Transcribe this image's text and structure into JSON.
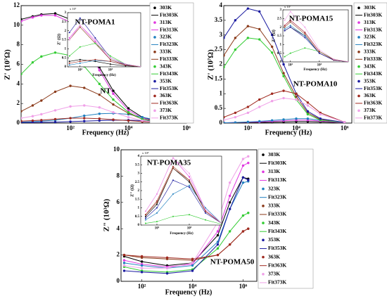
{
  "chart_data": [
    {
      "type": "line",
      "xlabel": "Frequency (Hz)",
      "ylabel": "Z' (10⁷Ω)",
      "xscale": "log",
      "xlim": [
        2,
        1000000
      ],
      "xticks": [
        {
          "value": 100,
          "label": "10²"
        },
        {
          "value": 10000,
          "label": "10⁴"
        },
        {
          "value": 1000000,
          "label": "10⁶"
        }
      ],
      "ylim": [
        0,
        12
      ],
      "yticks": [
        0,
        2,
        4,
        6,
        8,
        10,
        12
      ],
      "annotations": [
        "NT-POMA1",
        "NT"
      ],
      "x": [
        2,
        5,
        10,
        30,
        100,
        300,
        1000,
        3000,
        10000,
        30000,
        100000,
        1000000
      ],
      "series": [
        {
          "name": "303K",
          "fit_name": "Fit303K",
          "color": "#000000",
          "values": [
            10.6,
            10.9,
            11.1,
            11.2,
            10.6,
            8.6,
            5.7,
            3.3,
            1.5,
            0.6,
            0.2,
            0.05
          ]
        },
        {
          "name": "313K",
          "fit_name": "Fit313K",
          "color": "#e038e0",
          "values": [
            10.4,
            10.8,
            11.0,
            11.0,
            10.3,
            8.3,
            5.4,
            3.0,
            1.3,
            0.5,
            0.15,
            0.05
          ]
        },
        {
          "name": "323K",
          "fit_name": "Fit323K",
          "color": "#1f7fbf",
          "values": [
            0.1,
            0.15,
            0.2,
            0.3,
            0.5,
            0.75,
            0.95,
            1.0,
            0.9,
            0.6,
            0.3,
            0.05
          ]
        },
        {
          "name": "333K",
          "fit_name": "Fit333K",
          "color": "#8b3a1a",
          "values": [
            1.2,
            1.8,
            2.3,
            3.2,
            3.8,
            3.6,
            2.9,
            1.9,
            1.0,
            0.4,
            0.15,
            0.02
          ]
        },
        {
          "name": "343K",
          "fit_name": "Fit343K",
          "color": "#33cc33",
          "values": [
            5.0,
            6.2,
            6.8,
            7.2,
            6.9,
            5.8,
            4.0,
            2.4,
            1.1,
            0.4,
            0.12,
            0.02
          ]
        },
        {
          "name": "353K",
          "fit_name": "Fit353K",
          "color": "#1a1aa0",
          "values": [
            0.05,
            0.06,
            0.08,
            0.1,
            0.15,
            0.2,
            0.25,
            0.3,
            0.3,
            0.25,
            0.15,
            0.02
          ]
        },
        {
          "name": "363K",
          "fit_name": "Fit363K",
          "color": "#a02a20",
          "values": [
            0.2,
            0.25,
            0.3,
            0.4,
            0.5,
            0.5,
            0.45,
            0.35,
            0.25,
            0.15,
            0.08,
            0.01
          ]
        },
        {
          "name": "373K",
          "fit_name": "Fit373K",
          "color": "#f0a0e8",
          "values": [
            0.5,
            0.7,
            0.9,
            1.3,
            1.7,
            1.8,
            1.6,
            1.1,
            0.6,
            0.25,
            0.08,
            0.01
          ]
        }
      ]
    },
    {
      "type": "line",
      "xlabel": "Frequency (Hz)",
      "ylabel": "Z' (10⁷Ω)",
      "xscale": "log",
      "xlim": [
        10,
        2000000
      ],
      "xticks": [
        {
          "value": 100,
          "label": "10²"
        },
        {
          "value": 10000,
          "label": "10⁴"
        },
        {
          "value": 1000000,
          "label": "10⁶"
        }
      ],
      "ylim": [
        0,
        4
      ],
      "yticks": [
        0,
        0.5,
        1,
        1.5,
        2,
        2.5,
        3,
        3.5,
        4
      ],
      "annotations": [
        "NT-POMA15",
        "NT-POMA10"
      ],
      "x": [
        10,
        30,
        100,
        300,
        1000,
        3000,
        10000,
        30000,
        100000,
        1000000
      ],
      "series": [
        {
          "name": "303K",
          "fit_name": "Fit303K",
          "color": "#000000",
          "values": [
            0.01,
            0.01,
            0.02,
            0.02,
            0.03,
            0.04,
            0.05,
            0.05,
            0.04,
            0.01
          ]
        },
        {
          "name": "313K",
          "fit_name": "Fit313K",
          "color": "#e038e0",
          "values": [
            0.01,
            0.02,
            0.03,
            0.04,
            0.06,
            0.08,
            0.1,
            0.1,
            0.07,
            0.01
          ]
        },
        {
          "name": "323K",
          "fit_name": "Fit323K",
          "color": "#1f7fbf",
          "values": [
            0.01,
            0.02,
            0.04,
            0.06,
            0.09,
            0.12,
            0.15,
            0.15,
            0.1,
            0.02
          ]
        },
        {
          "name": "333K",
          "fit_name": "Fit333K",
          "color": "#8b3a1a",
          "values": [
            2.3,
            2.9,
            3.3,
            3.2,
            2.6,
            1.7,
            0.9,
            0.35,
            0.12,
            0.02
          ]
        },
        {
          "name": "343K",
          "fit_name": "Fit343K",
          "color": "#33cc33",
          "values": [
            1.9,
            2.5,
            2.9,
            2.85,
            2.4,
            1.6,
            0.8,
            0.3,
            0.1,
            0.02
          ]
        },
        {
          "name": "353K",
          "fit_name": "Fit353K",
          "color": "#1a1aa0",
          "values": [
            2.9,
            3.5,
            3.9,
            3.8,
            3.0,
            2.0,
            1.0,
            0.4,
            0.15,
            0.02
          ]
        },
        {
          "name": "363K",
          "fit_name": "Fit363K",
          "color": "#a02a20",
          "values": [
            0.2,
            0.35,
            0.55,
            0.8,
            1.0,
            1.1,
            1.0,
            0.7,
            0.35,
            0.03
          ]
        },
        {
          "name": "373K",
          "fit_name": "Fit373K",
          "color": "#f0a0e8",
          "values": [
            0.1,
            0.2,
            0.35,
            0.55,
            0.75,
            0.85,
            0.8,
            0.6,
            0.3,
            0.03
          ]
        }
      ]
    },
    {
      "type": "line",
      "xlabel": "Frequency (Hz)",
      "ylabel": "Z\" (10³Ω)",
      "xscale": "log",
      "xlim": [
        15,
        3500000
      ],
      "xticks": [
        {
          "value": 100,
          "label": "10²"
        },
        {
          "value": 10000,
          "label": "10⁴"
        },
        {
          "value": 1000000,
          "label": "10⁶"
        }
      ],
      "ylim": [
        0,
        10
      ],
      "yticks": [
        0,
        2,
        4,
        6,
        8,
        10
      ],
      "annotations": [
        "NT-POMA35",
        "NT-POMA50"
      ],
      "x": [
        20,
        100,
        1000,
        10000,
        100000,
        300000,
        1000000,
        1600000
      ],
      "series": [
        {
          "name": "303K",
          "fit_name": "Fit303K",
          "color": "#000000",
          "values": [
            1.9,
            1.5,
            1.2,
            1.4,
            3.5,
            6.0,
            7.9,
            7.8
          ]
        },
        {
          "name": "313K",
          "fit_name": "Fit313K",
          "color": "#e038e0",
          "values": [
            1.6,
            1.3,
            1.1,
            1.3,
            3.8,
            6.5,
            8.8,
            9.0
          ]
        },
        {
          "name": "323K",
          "fit_name": "Fit323K",
          "color": "#1f7fbf",
          "values": [
            1.4,
            1.2,
            1.0,
            1.2,
            3.0,
            5.5,
            7.5,
            7.6
          ]
        },
        {
          "name": "333K",
          "fit_name": "Fit333K",
          "color": "#8b3a1a",
          "values": [
            2.0,
            1.8,
            1.7,
            1.6,
            2.0,
            2.8,
            3.8,
            4.0
          ]
        },
        {
          "name": "343K",
          "fit_name": "Fit343K",
          "color": "#33cc33",
          "values": [
            1.1,
            0.8,
            0.7,
            0.9,
            2.5,
            3.8,
            5.0,
            5.2
          ]
        },
        {
          "name": "353K",
          "fit_name": "Fit353K",
          "color": "#1a1aa0",
          "values": [
            0.8,
            0.7,
            0.6,
            0.8,
            2.8,
            5.5,
            7.9,
            7.7
          ]
        },
        {
          "name": "363K",
          "fit_name": "Fit363K",
          "color": "#a02a20",
          "values": [
            2.0,
            1.9,
            1.8,
            1.7,
            2.0,
            2.8,
            3.8,
            4.0
          ]
        },
        {
          "name": "373K",
          "fit_name": "Fit373K",
          "color": "#f0a0e8",
          "values": [
            1.2,
            1.0,
            1.0,
            1.4,
            4.5,
            7.5,
            9.3,
            9.5
          ]
        }
      ]
    },
    {
      "type": "line",
      "inset": true,
      "xlabel": "Frequency (Hz)",
      "ylabel": "Z' (Ω)",
      "y_multiplier": "x 10⁷",
      "xscale": "log",
      "xlim": [
        15,
        1000000
      ],
      "xticks": [
        {
          "value": 100,
          "label": "10²"
        },
        {
          "value": 10000,
          "label": "10⁴"
        }
      ],
      "ylim": [
        0,
        3
      ],
      "yticks": [
        0,
        0.5,
        1,
        1.5,
        2,
        2.5,
        3
      ],
      "x": [
        20,
        100,
        1000,
        10000,
        100000,
        1000000
      ],
      "series": [
        {
          "color": "#000000",
          "values": [
            0.3,
            0.4,
            0.3,
            0.15,
            0.05,
            0.01
          ]
        },
        {
          "color": "#e038e0",
          "values": [
            1.6,
            2.3,
            1.4,
            0.4,
            0.1,
            0.01
          ]
        },
        {
          "color": "#1f7fbf",
          "values": [
            0.1,
            0.2,
            0.35,
            0.3,
            0.1,
            0.01
          ]
        },
        {
          "color": "#8b3a1a",
          "values": [
            1.5,
            2.2,
            1.3,
            0.4,
            0.1,
            0.01
          ]
        },
        {
          "color": "#33cc33",
          "values": [
            0.6,
            1.1,
            1.3,
            0.6,
            0.15,
            0.01
          ]
        },
        {
          "color": "#1a1aa0",
          "values": [
            1.9,
            2.7,
            1.6,
            0.5,
            0.12,
            0.01
          ]
        },
        {
          "color": "#a02a20",
          "values": [
            0.2,
            0.3,
            0.4,
            0.3,
            0.1,
            0.01
          ]
        },
        {
          "color": "#f0a0e8",
          "values": [
            1.5,
            2.3,
            1.5,
            0.5,
            0.15,
            0.01
          ]
        }
      ]
    },
    {
      "type": "line",
      "inset": true,
      "xlabel": "Frequency (Hz)",
      "ylabel": "Z\" (Ω)",
      "y_multiplier": "x 10⁷",
      "xscale": "log",
      "xlim": [
        30,
        1000000
      ],
      "xticks": [
        {
          "value": 100,
          "label": "10²"
        },
        {
          "value": 10000,
          "label": "10⁴"
        }
      ],
      "ylim": [
        0,
        3
      ],
      "yticks": [
        0,
        0.5,
        1,
        1.5,
        2,
        2.5,
        3
      ],
      "x": [
        40,
        100,
        1000,
        10000,
        100000,
        1000000
      ],
      "series": [
        {
          "color": "#000000",
          "values": [
            1.8,
            2.0,
            1.5,
            0.5,
            0.1,
            0.01
          ]
        },
        {
          "color": "#e038e0",
          "values": [
            2.1,
            2.4,
            1.7,
            0.6,
            0.12,
            0.01
          ]
        },
        {
          "color": "#1f7fbf",
          "values": [
            1.9,
            2.1,
            1.5,
            0.5,
            0.1,
            0.01
          ]
        },
        {
          "color": "#8b3a1a",
          "values": [
            2.0,
            2.3,
            1.6,
            0.5,
            0.1,
            0.01
          ]
        },
        {
          "color": "#33cc33",
          "values": [
            0.3,
            0.5,
            0.8,
            0.6,
            0.15,
            0.01
          ]
        },
        {
          "color": "#1a1aa0",
          "values": [
            1.8,
            2.0,
            1.4,
            0.5,
            0.1,
            0.01
          ]
        },
        {
          "color": "#a02a20",
          "values": [
            2.1,
            2.4,
            1.7,
            0.6,
            0.12,
            0.01
          ]
        },
        {
          "color": "#f0a0e8",
          "values": [
            2.4,
            2.9,
            2.0,
            0.7,
            0.15,
            0.01
          ]
        }
      ]
    },
    {
      "type": "line",
      "inset": true,
      "xlabel": "Frequency (Hz)",
      "ylabel": "Z\" (Ω)",
      "y_multiplier": "x 10⁵",
      "xscale": "log",
      "xlim": [
        100,
        10000000
      ],
      "xticks": [
        {
          "value": 1000,
          "label": "10³"
        },
        {
          "value": 100000,
          "label": "10⁵"
        }
      ],
      "ylim": [
        0,
        4
      ],
      "yticks": [
        0,
        0.5,
        1,
        1.5,
        2,
        2.5,
        3,
        3.5,
        4
      ],
      "x": [
        200,
        1000,
        10000,
        100000,
        1000000,
        10000000
      ],
      "series": [
        {
          "color": "#000000",
          "values": [
            0.5,
            1.2,
            3.3,
            2.5,
            0.8,
            0.1
          ]
        },
        {
          "color": "#e038e0",
          "values": [
            0.8,
            1.8,
            3.9,
            2.8,
            0.9,
            0.1
          ]
        },
        {
          "color": "#1f7fbf",
          "values": [
            0.3,
            0.7,
            1.8,
            2.3,
            1.0,
            0.1
          ]
        },
        {
          "color": "#8b3a1a",
          "values": [
            0.6,
            1.3,
            3.3,
            2.6,
            0.8,
            0.1
          ]
        },
        {
          "color": "#33cc33",
          "values": [
            0.1,
            0.2,
            0.5,
            0.6,
            0.3,
            0.05
          ]
        },
        {
          "color": "#1a1aa0",
          "values": [
            0.4,
            1.0,
            2.6,
            2.2,
            0.7,
            0.1
          ]
        },
        {
          "color": "#a02a20",
          "values": [
            0.6,
            1.4,
            3.4,
            2.6,
            0.8,
            0.1
          ]
        },
        {
          "color": "#f0a0e8",
          "values": [
            0.8,
            1.8,
            3.9,
            3.0,
            0.9,
            0.1
          ]
        }
      ]
    }
  ]
}
